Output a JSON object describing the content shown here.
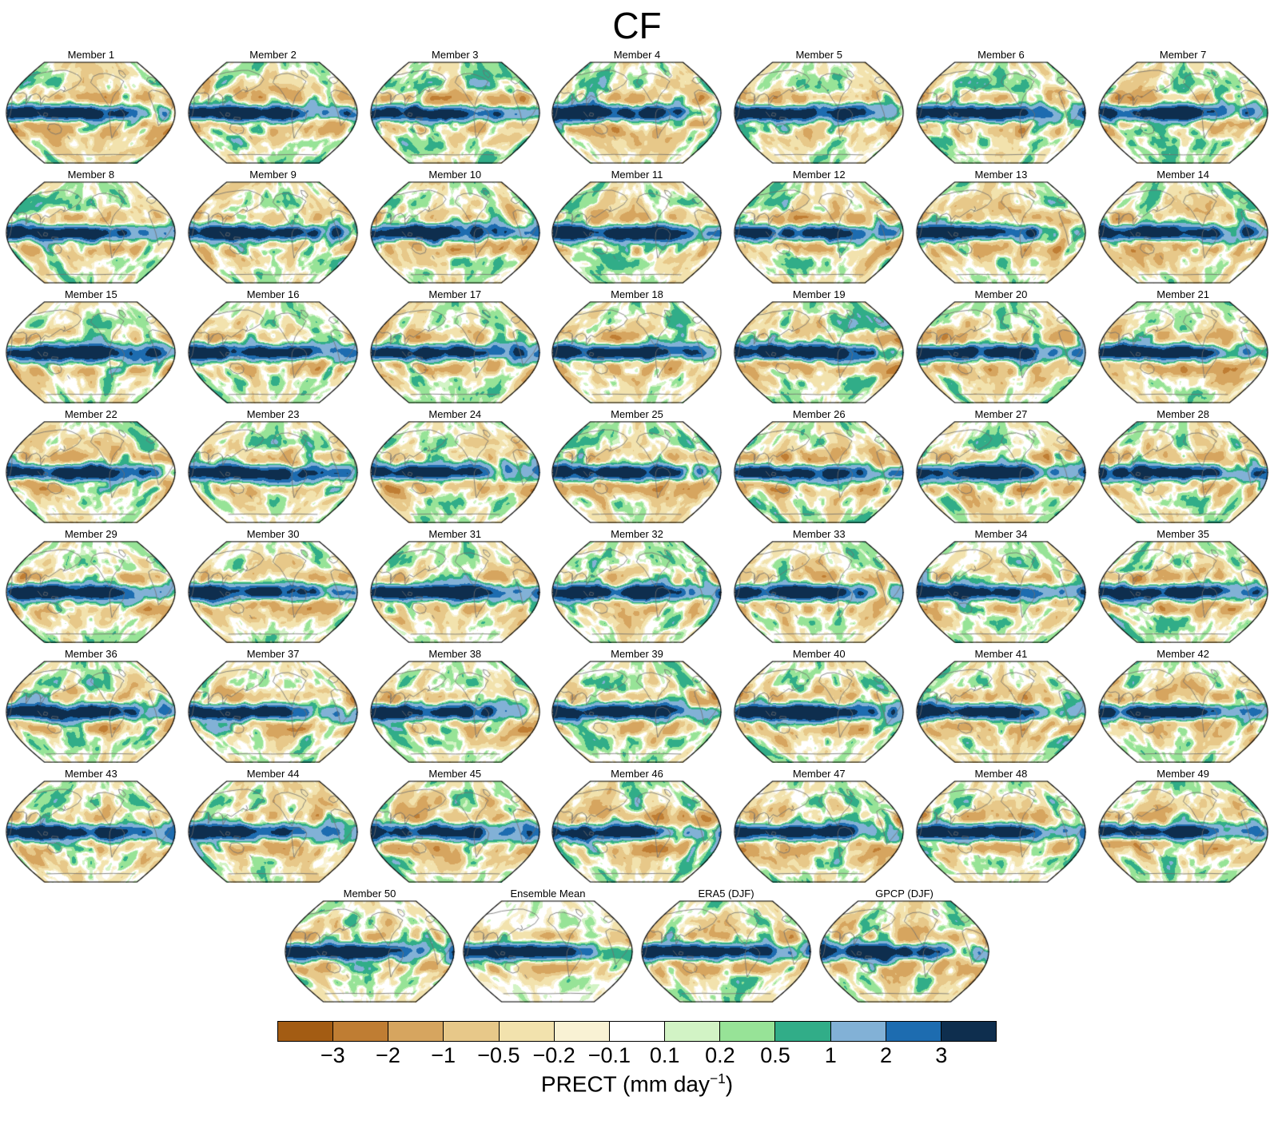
{
  "title": "CF",
  "panels": [
    "Member 1",
    "Member 2",
    "Member 3",
    "Member 4",
    "Member 5",
    "Member 6",
    "Member 7",
    "Member 8",
    "Member 9",
    "Member 10",
    "Member 11",
    "Member 12",
    "Member 13",
    "Member 14",
    "Member 15",
    "Member 16",
    "Member 17",
    "Member 18",
    "Member 19",
    "Member 20",
    "Member 21",
    "Member 22",
    "Member 23",
    "Member 24",
    "Member 25",
    "Member 26",
    "Member 27",
    "Member 28",
    "Member 29",
    "Member 30",
    "Member 31",
    "Member 32",
    "Member 33",
    "Member 34",
    "Member 35",
    "Member 36",
    "Member 37",
    "Member 38",
    "Member 39",
    "Member 40",
    "Member 41",
    "Member 42",
    "Member 43",
    "Member 44",
    "Member 45",
    "Member 46",
    "Member 47",
    "Member 48",
    "Member 49",
    "Member 50",
    "Ensemble Mean",
    "ERA5 (DJF)",
    "GPCP (DJF)"
  ],
  "colorbar": {
    "colors": [
      "#a35c13",
      "#bf7d33",
      "#d6a55f",
      "#e7c889",
      "#f2e2ad",
      "#f9f2d4",
      "#ffffff",
      "#d2f3c5",
      "#97e397",
      "#31ad88",
      "#82b1d6",
      "#1d6cb0",
      "#0e2e4e"
    ],
    "tick_labels": [
      "−3",
      "−2",
      "−1",
      "−0.5",
      "−0.2",
      "−0.1",
      "0.1",
      "0.2",
      "0.5",
      "1",
      "2",
      "3"
    ],
    "label_pre": "PRECT (mm day",
    "label_sup": "−1",
    "label_post": ")"
  },
  "chart_data": {
    "type": "heatmap",
    "title": "CF",
    "variable": "PRECT",
    "units": "mm day^-1",
    "panel_labels": [
      "Member 1",
      "Member 2",
      "Member 3",
      "Member 4",
      "Member 5",
      "Member 6",
      "Member 7",
      "Member 8",
      "Member 9",
      "Member 10",
      "Member 11",
      "Member 12",
      "Member 13",
      "Member 14",
      "Member 15",
      "Member 16",
      "Member 17",
      "Member 18",
      "Member 19",
      "Member 20",
      "Member 21",
      "Member 22",
      "Member 23",
      "Member 24",
      "Member 25",
      "Member 26",
      "Member 27",
      "Member 28",
      "Member 29",
      "Member 30",
      "Member 31",
      "Member 32",
      "Member 33",
      "Member 34",
      "Member 35",
      "Member 36",
      "Member 37",
      "Member 38",
      "Member 39",
      "Member 40",
      "Member 41",
      "Member 42",
      "Member 43",
      "Member 44",
      "Member 45",
      "Member 46",
      "Member 47",
      "Member 48",
      "Member 49",
      "Member 50",
      "Ensemble Mean",
      "ERA5 (DJF)",
      "GPCP (DJF)"
    ],
    "colorbar_ticks": [
      -3,
      -2,
      -1,
      -0.5,
      -0.2,
      -0.1,
      0.1,
      0.2,
      0.5,
      1,
      2,
      3
    ],
    "colorbar_colors": [
      "#a35c13",
      "#bf7d33",
      "#d6a55f",
      "#e7c889",
      "#f2e2ad",
      "#f9f2d4",
      "#ffffff",
      "#d2f3c5",
      "#97e397",
      "#31ad88",
      "#82b1d6",
      "#1d6cb0",
      "#0e2e4e"
    ],
    "colorbar_label": "PRECT (mm day−1)",
    "projection": "robinson-like global maps",
    "layout": {
      "grid_columns": 7,
      "main_grid_panels": 49,
      "bottom_row_panels": 4,
      "legend_position": "bottom"
    }
  }
}
